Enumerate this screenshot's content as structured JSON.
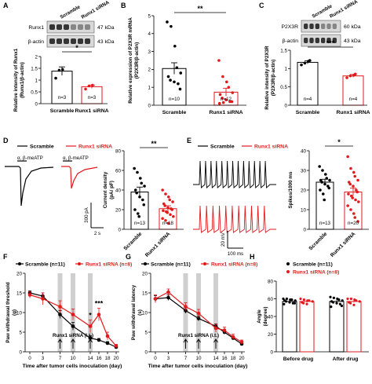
{
  "colors": {
    "black": "#000000",
    "red": "#e31a1c",
    "band_fill": "#cfcfcf",
    "band_stroke": "#a8a8a8"
  },
  "chart_data": [
    {
      "panel": "A",
      "type": "bar",
      "blot_labels": [
        "Runx1",
        "β-actin"
      ],
      "kda_labels": [
        "47 kDa",
        "43 kDa"
      ],
      "lanes": [
        "Scramble",
        "Runx1 siRNA"
      ],
      "categories": [
        "Scramble",
        "Runx1 siRNA"
      ],
      "values": [
        1.38,
        0.72
      ],
      "errors": [
        0.18,
        0.07
      ],
      "points": [
        [
          1.08,
          1.42,
          1.45
        ],
        [
          0.62,
          0.75,
          0.78
        ]
      ],
      "n_labels": [
        "n=3",
        "n=3"
      ],
      "ylabel": "Relative intensity of Runx1 (Runx1/β-actin)",
      "ylim": [
        0,
        2.0
      ],
      "yticks": [
        0,
        0.5,
        1.0,
        1.5,
        2.0
      ],
      "sig": "*"
    },
    {
      "panel": "B",
      "type": "bar",
      "categories": [
        "Scramble",
        "Runx1 siRNA"
      ],
      "values": [
        2.05,
        0.73
      ],
      "errors": [
        0.32,
        0.22
      ],
      "points": [
        [
          4.65,
          4.4,
          3.3,
          2.1,
          1.8,
          1.6,
          1.4,
          1.3,
          1.2,
          0.9
        ],
        [
          2.5,
          1.6,
          1.3,
          1.0,
          0.7,
          0.6,
          0.4,
          0.3,
          0.2,
          0.2,
          0.1,
          0.15
        ]
      ],
      "n_labels": [
        "n=10",
        "n=12"
      ],
      "ylabel": "Relative expression of P2X3R mRNA (P2X3R/β-actin)",
      "ylim": [
        0,
        5
      ],
      "yticks": [
        0,
        1,
        2,
        3,
        4,
        5
      ],
      "sig": "**"
    },
    {
      "panel": "C",
      "type": "bar",
      "blot_labels": [
        "P2X3R",
        "β-actin"
      ],
      "kda_labels": [
        "60 kDa",
        "43 kDa"
      ],
      "lanes": [
        "Scramble",
        "Runx1 siRNA"
      ],
      "categories": [
        "Scramble",
        "Runx1 siRNA"
      ],
      "values": [
        1.17,
        0.8
      ],
      "errors": [
        0.04,
        0.04
      ],
      "points": [
        [
          1.1,
          1.15,
          1.2,
          1.22
        ],
        [
          0.75,
          0.8,
          0.82,
          0.85
        ]
      ],
      "n_labels": [
        "n=4",
        "n=4"
      ],
      "ylabel": "Relative intensity of P2X3R (P2X3R/β-actin)",
      "ylim": [
        0,
        1.5
      ],
      "yticks": [
        0.0,
        0.5,
        1.0,
        1.5
      ],
      "sig": "***"
    },
    {
      "panel": "D",
      "type": "bar",
      "legend": [
        "Scramble",
        "Runx1 siRNA"
      ],
      "trace_labels": [
        "α, β-meATP",
        "α, β-meATP"
      ],
      "scale_y": "300 pA",
      "scale_x": "2 s",
      "categories": [
        "Scramble",
        "Runx1 siRNA"
      ],
      "values": [
        38,
        21
      ],
      "errors": [
        5,
        3
      ],
      "points": [
        [
          62,
          58,
          52,
          47,
          44,
          40,
          37,
          33,
          30,
          25,
          20,
          16,
          13
        ],
        [
          40,
          36,
          33,
          30,
          28,
          26,
          24,
          22,
          21,
          20,
          19,
          18,
          17,
          15,
          13,
          11,
          9,
          6
        ]
      ],
      "n_labels": [
        "n=13",
        "n=18"
      ],
      "ylabel": "Current density (pA/ pF)",
      "ylim": [
        0,
        80
      ],
      "yticks": [
        0,
        20,
        40,
        60,
        80
      ],
      "sig": "**"
    },
    {
      "panel": "E",
      "type": "bar",
      "legend": [
        "Scramble",
        "Runx1 siRNA"
      ],
      "scale_y": "20 mV",
      "scale_x": "100 ms",
      "categories": [
        "Scramble",
        "Runx1 siRNA"
      ],
      "values": [
        24,
        19
      ],
      "errors": [
        1.5,
        2
      ],
      "points": [
        [
          32,
          30,
          28,
          26,
          25,
          25,
          24,
          23,
          22,
          21,
          20,
          18,
          15
        ],
        [
          37,
          31,
          29,
          27,
          25,
          24,
          23,
          22,
          20,
          19,
          18,
          17,
          16,
          15,
          14,
          12,
          10,
          8,
          6,
          4
        ]
      ],
      "n_labels": [
        "n=13",
        "n=20"
      ],
      "ylabel": "Spikes/1000 ms",
      "ylim": [
        0,
        40
      ],
      "yticks": [
        0,
        10,
        20,
        30,
        40
      ],
      "sig": "*"
    },
    {
      "panel": "F",
      "type": "line",
      "legend": [
        "Scramble (n=11)",
        "Runx1 siRNA (n=8)"
      ],
      "x": [
        0,
        3,
        7,
        10,
        14,
        16,
        18,
        20
      ],
      "xticks": [
        0,
        3,
        7,
        10,
        14,
        16,
        18,
        20
      ],
      "series": [
        {
          "name": "Scramble (n=11)",
          "values": [
            15,
            14.2,
            9.5,
            6.5,
            3.5,
            3,
            2.2,
            1.2
          ],
          "errors": [
            0.5,
            0.8,
            1.0,
            1.0,
            0.6,
            0.4,
            0.4,
            0.3
          ]
        },
        {
          "name": "Runx1 siRNA (n=8)",
          "values": [
            14.5,
            13.5,
            11.5,
            9.5,
            6.5,
            9.5,
            4,
            1.5
          ],
          "errors": [
            0.8,
            1.5,
            1.5,
            1.4,
            1.6,
            1.6,
            1.0,
            0.4
          ]
        }
      ],
      "bands_x": [
        7,
        10,
        14
      ],
      "annotations": [
        {
          "x": 14,
          "text": "*"
        },
        {
          "x": 16,
          "text": "***"
        }
      ],
      "arrow_label": "Runx1 siRNA (i.t.)",
      "ylabel": "Paw withdrawal threshold (g)",
      "xlabel": "Time after tumor cells inoculation (day)",
      "ylim": [
        0,
        20
      ],
      "yticks": [
        0,
        5,
        10,
        15,
        20
      ]
    },
    {
      "panel": "G",
      "type": "line",
      "legend": [
        "Scramble (n=11)",
        "Runx1 siRNA (n=8)"
      ],
      "x": [
        0,
        3,
        7,
        10,
        14,
        16,
        18,
        20
      ],
      "xticks": [
        0,
        3,
        7,
        10,
        14,
        16,
        18,
        20
      ],
      "series": [
        {
          "name": "Scramble (n=11)",
          "values": [
            13.5,
            13.8,
            10.5,
            8.5,
            6.5,
            5,
            3.5,
            2
          ],
          "errors": [
            0.8,
            0.7,
            0.7,
            0.6,
            0.6,
            0.5,
            0.5,
            0.4
          ]
        },
        {
          "name": "Runx1 siRNA (n=8)",
          "values": [
            13.5,
            15.2,
            11.5,
            9.8,
            6,
            5.5,
            3.8,
            2.5
          ],
          "errors": [
            1.0,
            0.8,
            1.0,
            1.0,
            1.0,
            0.8,
            0.7,
            0.5
          ]
        }
      ],
      "bands_x": [
        7,
        10,
        14
      ],
      "arrow_label": "Runx1 siRNA (i.t.)",
      "ylabel": "Paw withdrawal latency (s)",
      "xlabel": "Time after tumor cells inoculation (day)",
      "ylim": [
        0,
        20
      ],
      "yticks": [
        0,
        5,
        10,
        15,
        20
      ]
    },
    {
      "panel": "H",
      "type": "bar",
      "legend": [
        "Scramble (n=11)",
        "Runx1 siRNA (n=8)"
      ],
      "groups": [
        "Before drug",
        "After drug"
      ],
      "series": [
        {
          "name": "Scramble (n=11)",
          "values": [
            57,
            57
          ],
          "errors": [
            1.2,
            1.5
          ],
          "points": [
            [
              60,
              60,
              59,
              59,
              58,
              58,
              57,
              56,
              55,
              55,
              54
            ],
            [
              62,
              61,
              60,
              59,
              58,
              57,
              56,
              55,
              54,
              52,
              51
            ]
          ]
        },
        {
          "name": "Runx1 siRNA (n=8)",
          "values": [
            57,
            57
          ],
          "errors": [
            1.2,
            1.2
          ],
          "points": [
            [
              60,
              59,
              58,
              58,
              57,
              56,
              55,
              54
            ],
            [
              60,
              60,
              59,
              58,
              57,
              56,
              55,
              53
            ]
          ]
        }
      ],
      "ylabel": "Angle (degree)",
      "ylim": [
        0,
        80
      ],
      "yticks": [
        0,
        20,
        40,
        60,
        80
      ]
    }
  ]
}
